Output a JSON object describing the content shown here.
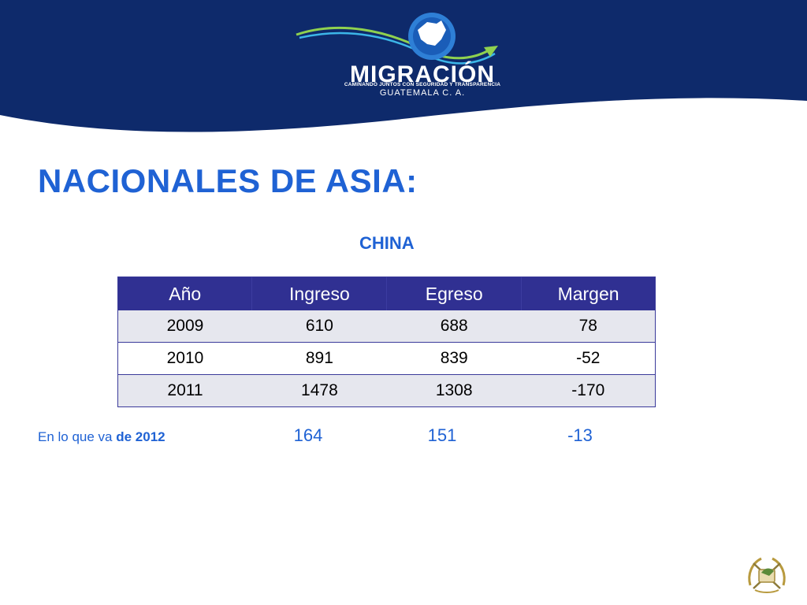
{
  "header": {
    "logo_title": "MIGRACIÓN",
    "logo_tagline": "CAMINANDO JUNTOS CON SEGURIDAD Y TRANSPARENCIA",
    "logo_country": "GUATEMALA C. A.",
    "band_color": "#0e2a6b"
  },
  "page_title": "NACIONALES DE ASIA:",
  "subtitle": "CHINA",
  "table": {
    "headers": [
      "Año",
      "Ingreso",
      "Egreso",
      "Margen"
    ],
    "rows": [
      [
        "2009",
        "610",
        "688",
        "78"
      ],
      [
        "2010",
        "891",
        "839",
        "-52"
      ],
      [
        "2011",
        "1478",
        "1308",
        "-170"
      ]
    ],
    "header_color": "#303092",
    "stripe_color": "#e6e7ee"
  },
  "footnote": {
    "prefix": "En lo que va ",
    "emphasis": "de 2012",
    "values": [
      "164",
      "151",
      "-13"
    ]
  },
  "accent_color": "#1f62d4",
  "icons": {
    "logo": "guatemala-map-emblem-icon",
    "seal": "guatemala-coat-of-arms-icon"
  }
}
